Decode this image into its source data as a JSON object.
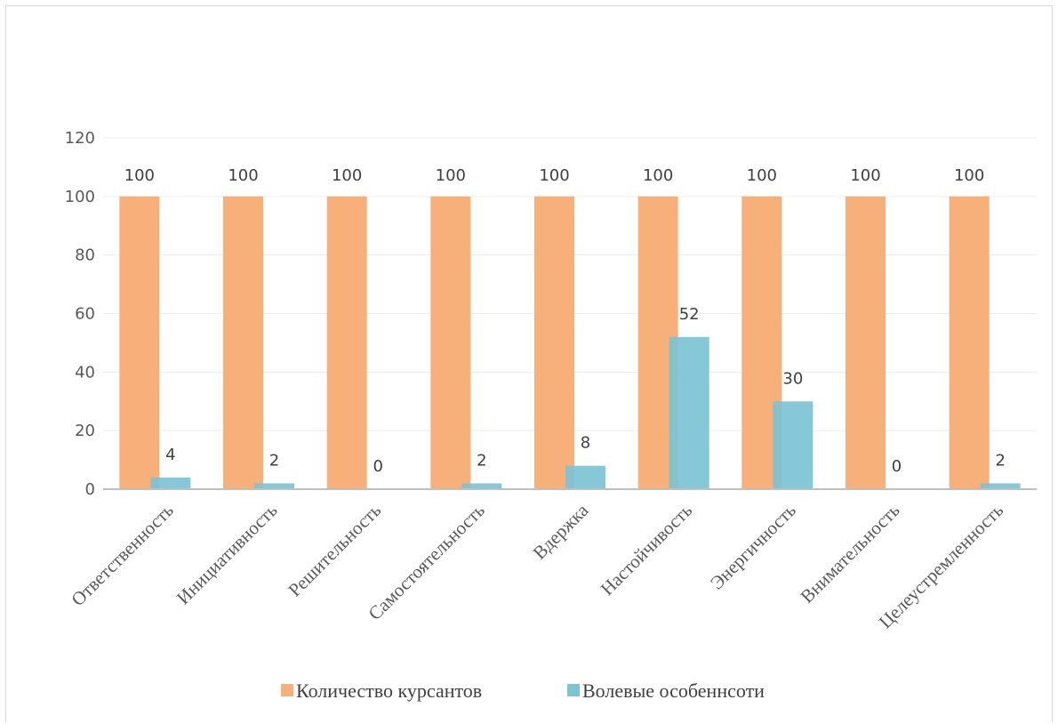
{
  "chart_data": {
    "type": "bar",
    "title": "",
    "xlabel": "",
    "ylabel": "",
    "ylim": [
      0,
      120
    ],
    "yticks": [
      0,
      20,
      40,
      60,
      80,
      100,
      120
    ],
    "grid": true,
    "legend_position": "bottom",
    "categories": [
      "Ответственность",
      "Инициативность",
      "Решительность",
      "Самостоятельность",
      "Вдержка",
      "Настойчивость",
      "Энергичность",
      "Внимательность",
      "Целеустремленность"
    ],
    "series": [
      {
        "name": "Количество курсантов",
        "color": "#f8b07a",
        "values": [
          100,
          100,
          100,
          100,
          100,
          100,
          100,
          100,
          100
        ]
      },
      {
        "name": "Волевые особеннсоти",
        "color": "#7cc3d4",
        "values": [
          4,
          2,
          0,
          2,
          8,
          52,
          30,
          0,
          2
        ]
      }
    ]
  }
}
